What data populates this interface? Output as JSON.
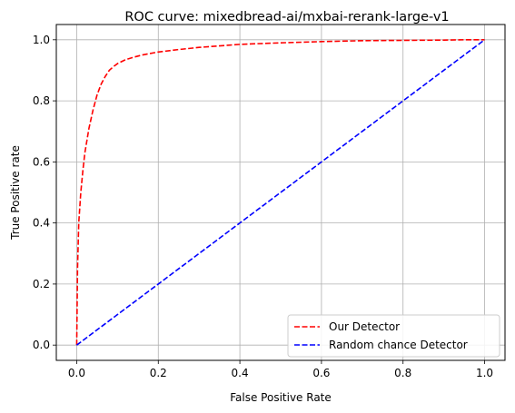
{
  "chart_data": {
    "type": "line",
    "title": "ROC curve: mixedbread-ai/mxbai-rerank-large-v1",
    "xlabel": "False Positive Rate",
    "ylabel": "True Positive rate",
    "xlim": [
      -0.05,
      1.05
    ],
    "ylim": [
      -0.05,
      1.05
    ],
    "xticks": [
      0.0,
      0.2,
      0.4,
      0.6,
      0.8,
      1.0
    ],
    "yticks": [
      0.0,
      0.2,
      0.4,
      0.6,
      0.8,
      1.0
    ],
    "xtick_labels": [
      "0.0",
      "0.2",
      "0.4",
      "0.6",
      "0.8",
      "1.0"
    ],
    "ytick_labels": [
      "0.0",
      "0.2",
      "0.4",
      "0.6",
      "0.8",
      "1.0"
    ],
    "grid": true,
    "legend_position": "lower-right",
    "series": [
      {
        "name": "Our Detector",
        "color": "#ff0000",
        "style": "dashed",
        "x": [
          0.0,
          0.002,
          0.005,
          0.01,
          0.015,
          0.02,
          0.03,
          0.04,
          0.05,
          0.06,
          0.07,
          0.08,
          0.09,
          0.1,
          0.12,
          0.14,
          0.16,
          0.18,
          0.2,
          0.25,
          0.3,
          0.35,
          0.4,
          0.5,
          0.6,
          0.7,
          0.8,
          0.9,
          0.95,
          1.0
        ],
        "y": [
          0.0,
          0.25,
          0.4,
          0.5,
          0.57,
          0.63,
          0.71,
          0.77,
          0.82,
          0.855,
          0.88,
          0.9,
          0.912,
          0.922,
          0.935,
          0.943,
          0.95,
          0.955,
          0.96,
          0.968,
          0.975,
          0.98,
          0.985,
          0.99,
          0.994,
          0.997,
          0.998,
          0.999,
          1.0,
          1.0
        ]
      },
      {
        "name": "Random chance Detector",
        "color": "#0000ff",
        "style": "dashed",
        "x": [
          0.0,
          1.0
        ],
        "y": [
          0.0,
          1.0
        ]
      }
    ]
  }
}
